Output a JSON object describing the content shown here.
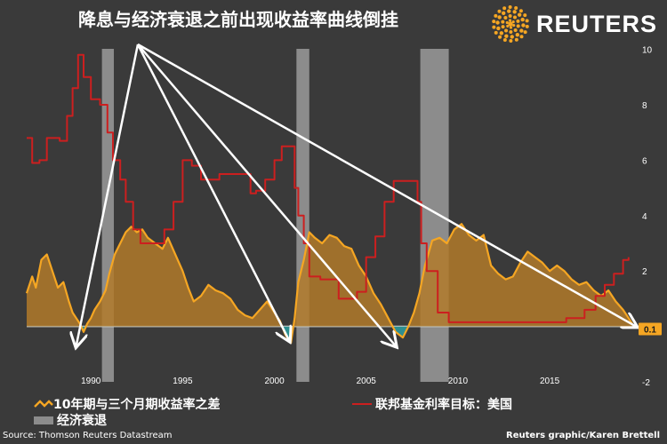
{
  "title": "降息与经济衰退之前出现收益率曲线倒挂",
  "brand": {
    "name": "REUTERS"
  },
  "legend": {
    "spread": "10年期与三个月期收益率之差",
    "recession": "经济衰退",
    "fed": "联邦基金利率目标：美国"
  },
  "source": "Source: Thomson Reuters Datastream",
  "credit": "Reuters graphic/Karen Brettell",
  "last_value_label": "0.1",
  "colors": {
    "background": "#3a3a3a",
    "spread_line": "#f5a623",
    "spread_fill_positive": "#b27a2a",
    "spread_fill_negative": "#2e8f90",
    "fed_line": "#cc1f1f",
    "recession_bar": "#8c8c8c",
    "arrows": "#ffffff"
  },
  "chart_data": {
    "type": "line",
    "x_ticks": [
      1990,
      1995,
      2000,
      2005,
      2010,
      2015
    ],
    "y_ticks": [
      -2,
      0,
      2,
      4,
      6,
      8,
      10
    ],
    "xlim": [
      1986.5,
      2019.6
    ],
    "ylim": [
      -2,
      10.5
    ],
    "recessions": [
      [
        1990.6,
        1991.25
      ],
      [
        2001.2,
        2001.9
      ],
      [
        2007.95,
        2009.5
      ]
    ],
    "series": [
      {
        "name": "10年期与三个月期收益率之差",
        "x": [
          1986.5,
          1986.8,
          1987.0,
          1987.3,
          1987.6,
          1987.9,
          1988.2,
          1988.5,
          1988.8,
          1989.0,
          1989.2,
          1989.4,
          1989.6,
          1989.8,
          1990.0,
          1990.2,
          1990.5,
          1990.8,
          1991.0,
          1991.3,
          1991.6,
          1991.9,
          1992.2,
          1992.5,
          1992.8,
          1993.1,
          1993.5,
          1993.9,
          1994.2,
          1994.6,
          1995.0,
          1995.3,
          1995.6,
          1996.0,
          1996.4,
          1996.8,
          1997.2,
          1997.6,
          1998.0,
          1998.4,
          1998.8,
          1999.2,
          1999.6,
          2000.0,
          2000.3,
          2000.6,
          2000.9,
          2001.1,
          2001.3,
          2001.6,
          2001.9,
          2002.2,
          2002.6,
          2003.0,
          2003.4,
          2003.8,
          2004.2,
          2004.6,
          2005.0,
          2005.4,
          2005.8,
          2006.2,
          2006.6,
          2007.0,
          2007.3,
          2007.6,
          2007.9,
          2008.2,
          2008.6,
          2009.0,
          2009.4,
          2009.8,
          2010.2,
          2010.6,
          2011.0,
          2011.4,
          2011.8,
          2012.2,
          2012.6,
          2013.0,
          2013.4,
          2013.8,
          2014.2,
          2014.6,
          2015.0,
          2015.4,
          2015.8,
          2016.2,
          2016.6,
          2017.0,
          2017.4,
          2017.8,
          2018.2,
          2018.6,
          2019.0,
          2019.3,
          2019.5
        ],
        "y": [
          1.2,
          1.8,
          1.4,
          2.4,
          2.6,
          2.0,
          1.4,
          1.6,
          0.9,
          0.5,
          0.3,
          0.1,
          -0.2,
          0.1,
          0.3,
          0.6,
          0.9,
          1.3,
          1.9,
          2.6,
          3.0,
          3.4,
          3.6,
          3.4,
          3.5,
          3.2,
          3.0,
          2.8,
          3.2,
          2.6,
          2.0,
          1.4,
          0.9,
          1.1,
          1.5,
          1.3,
          1.2,
          1.0,
          0.6,
          0.4,
          0.3,
          0.6,
          0.9,
          0.5,
          0.2,
          -0.3,
          -0.6,
          0.3,
          1.6,
          2.4,
          3.4,
          3.2,
          3.0,
          3.3,
          3.2,
          2.9,
          2.8,
          2.2,
          1.8,
          1.2,
          0.8,
          0.3,
          -0.2,
          -0.4,
          0.0,
          0.5,
          1.2,
          2.2,
          3.1,
          3.2,
          3.0,
          3.5,
          3.7,
          3.3,
          3.1,
          3.3,
          2.2,
          1.9,
          1.7,
          1.8,
          2.3,
          2.7,
          2.5,
          2.3,
          2.0,
          2.2,
          2.0,
          1.7,
          1.5,
          1.6,
          1.3,
          1.1,
          1.3,
          0.9,
          0.6,
          0.3,
          0.1
        ]
      },
      {
        "name": "联邦基金利率目标：美国",
        "x": [
          1986.5,
          1986.8,
          1987.2,
          1987.6,
          1987.9,
          1988.3,
          1988.7,
          1989.0,
          1989.3,
          1989.6,
          1990.0,
          1990.5,
          1990.9,
          1991.2,
          1991.6,
          1991.9,
          1992.3,
          1992.7,
          1993.5,
          1994.0,
          1994.5,
          1995.0,
          1995.5,
          1996.0,
          1997.0,
          1997.5,
          1998.0,
          1998.7,
          1999.0,
          1999.5,
          2000.0,
          2000.4,
          2000.9,
          2001.1,
          2001.3,
          2001.6,
          2001.9,
          2002.5,
          2003.5,
          2004.5,
          2005.0,
          2005.5,
          2006.0,
          2006.5,
          2007.5,
          2007.8,
          2008.0,
          2008.3,
          2008.9,
          2009.5,
          2012.0,
          2015.9,
          2016.9,
          2017.5,
          2018.0,
          2018.5,
          2019.0,
          2019.3
        ],
        "y": [
          6.8,
          5.9,
          6.0,
          6.8,
          6.8,
          6.7,
          7.6,
          8.6,
          9.8,
          9.0,
          8.2,
          8.0,
          7.0,
          6.0,
          5.3,
          4.5,
          3.5,
          3.0,
          3.0,
          3.5,
          4.5,
          6.0,
          5.8,
          5.3,
          5.5,
          5.5,
          5.5,
          4.8,
          4.9,
          5.3,
          6.0,
          6.5,
          6.5,
          5.0,
          4.0,
          3.0,
          1.8,
          1.7,
          1.0,
          1.25,
          2.5,
          3.25,
          4.5,
          5.25,
          5.25,
          4.5,
          3.0,
          2.0,
          0.5,
          0.15,
          0.15,
          0.3,
          0.6,
          1.1,
          1.5,
          1.9,
          2.4,
          2.5
        ]
      }
    ]
  }
}
